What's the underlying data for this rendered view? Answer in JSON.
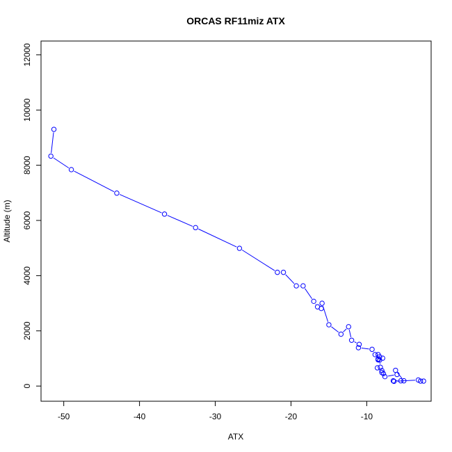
{
  "chart_data": {
    "type": "line",
    "title": "ORCAS RF11miz ATX",
    "xlabel": "ATX",
    "ylabel": "Altitude (m)",
    "xlim": [
      -53.0,
      -1.5
    ],
    "ylim": [
      -550,
      12500
    ],
    "x_ticks": [
      -50,
      -40,
      -30,
      -20,
      -10
    ],
    "y_ticks": [
      0,
      2000,
      4000,
      6000,
      8000,
      10000,
      12000
    ],
    "x_tick_labels": [
      "-50",
      "-40",
      "-30",
      "-20",
      "-10"
    ],
    "y_tick_labels": [
      "0",
      "2000",
      "4000",
      "6000",
      "8000",
      "10000",
      "12000"
    ],
    "series": [
      {
        "color": "#0000ff",
        "marker": "open-circle",
        "x": [
          -51.3,
          -51.7,
          -49.0,
          -43.0,
          -36.7,
          -32.6,
          -26.8,
          -21.8,
          -21.0,
          -19.3,
          -18.4,
          -17.0,
          -16.5,
          -16.0,
          -15.9,
          -15.0,
          -13.4,
          -12.4,
          -12.0,
          -11.0,
          -11.1,
          -9.3,
          -8.9,
          -8.5,
          -8.3,
          -8.5,
          -7.9,
          -8.5,
          -8.3,
          -8.2,
          -8.6,
          -8.0,
          -7.8,
          -8.0,
          -7.6,
          -6.0,
          -6.2,
          -5.1,
          -5.5,
          -6.5,
          -6.4,
          -3.2,
          -2.5,
          -2.9
        ],
        "y": [
          9300,
          8330,
          7840,
          6990,
          6230,
          5740,
          4990,
          4120,
          4120,
          3630,
          3630,
          3070,
          2870,
          2810,
          3000,
          2220,
          1880,
          2150,
          1660,
          1510,
          1390,
          1330,
          1140,
          1140,
          1060,
          980,
          1010,
          950,
          940,
          680,
          660,
          560,
          450,
          490,
          340,
          420,
          570,
          190,
          190,
          190,
          170,
          220,
          180,
          180
        ]
      }
    ]
  }
}
